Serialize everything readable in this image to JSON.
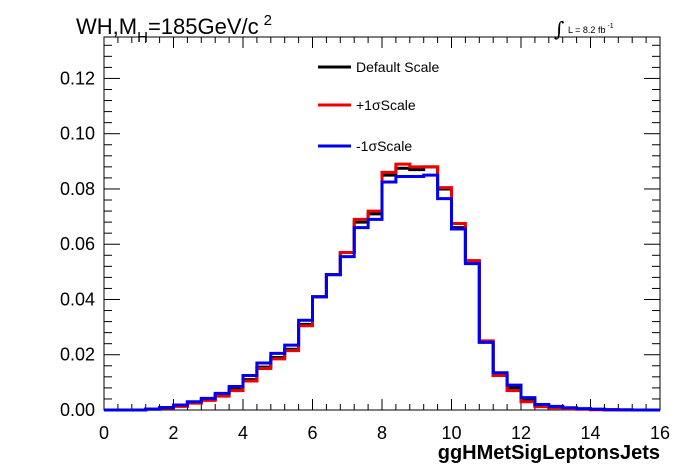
{
  "chart_data": {
    "type": "line",
    "title_main": "WH,M",
    "title_sub": "H",
    "title_rest": "=185GeV/c",
    "title_sup": "2",
    "lumi_text": "L = 8.2 fb",
    "lumi_sup": "-1",
    "xlabel": "ggHMetSigLeptonsJets",
    "ylabel": "",
    "xlim": [
      0,
      16
    ],
    "ylim": [
      0,
      0.135
    ],
    "x_ticks": [
      0,
      2,
      4,
      6,
      8,
      10,
      12,
      14,
      16
    ],
    "x_tick_labels": [
      "0",
      "2",
      "4",
      "6",
      "8",
      "10",
      "12",
      "14",
      "16"
    ],
    "y_ticks": [
      0,
      0.02,
      0.04,
      0.06,
      0.08,
      0.1,
      0.12
    ],
    "y_tick_labels": [
      "0.00",
      "0.02",
      "0.04",
      "0.06",
      "0.08",
      "0.10",
      "0.12"
    ],
    "bin_edges": [
      0,
      0.4,
      0.8,
      1.2,
      1.6,
      2.0,
      2.4,
      2.8,
      3.2,
      3.6,
      4.0,
      4.4,
      4.8,
      5.2,
      5.6,
      6.0,
      6.4,
      6.8,
      7.2,
      7.6,
      8.0,
      8.4,
      8.8,
      9.2,
      9.6,
      10.0,
      10.4,
      10.8,
      11.2,
      11.6,
      12.0,
      12.4,
      12.8,
      13.2,
      13.6,
      14.0,
      14.4,
      14.8,
      15.2,
      15.6,
      16.0
    ],
    "grid": false,
    "legend_position": "top-center",
    "series": [
      {
        "name": "Default Scale",
        "color": "#000000",
        "values": [
          0,
          0,
          0,
          0.0003,
          0.0008,
          0.0015,
          0.0028,
          0.0038,
          0.0055,
          0.0075,
          0.011,
          0.0155,
          0.019,
          0.022,
          0.031,
          0.041,
          0.049,
          0.057,
          0.068,
          0.071,
          0.085,
          0.0875,
          0.087,
          0.088,
          0.08,
          0.066,
          0.054,
          0.0245,
          0.0125,
          0.008,
          0.0035,
          0.0015,
          0.001,
          0.0006,
          0.0003,
          0.0002,
          0.0001,
          0,
          0,
          0
        ]
      },
      {
        "name": "+1σScale",
        "color": "#ee0000",
        "values": [
          0,
          0,
          0,
          0.0003,
          0.0007,
          0.0013,
          0.0025,
          0.0035,
          0.005,
          0.007,
          0.0105,
          0.015,
          0.0185,
          0.0215,
          0.0305,
          0.041,
          0.049,
          0.057,
          0.069,
          0.072,
          0.086,
          0.089,
          0.088,
          0.088,
          0.0805,
          0.0675,
          0.054,
          0.025,
          0.0125,
          0.007,
          0.003,
          0.0012,
          0.0008,
          0.0005,
          0.0003,
          0.0001,
          0.0001,
          0,
          0,
          0
        ]
      },
      {
        "name": "-1σScale",
        "color": "#0000ee",
        "values": [
          0,
          0,
          0,
          0.0003,
          0.0009,
          0.0018,
          0.003,
          0.0042,
          0.006,
          0.0085,
          0.0125,
          0.017,
          0.0205,
          0.0235,
          0.0325,
          0.041,
          0.049,
          0.0555,
          0.066,
          0.069,
          0.0825,
          0.0845,
          0.0845,
          0.085,
          0.0765,
          0.0655,
          0.053,
          0.0245,
          0.0135,
          0.009,
          0.0045,
          0.002,
          0.0013,
          0.0008,
          0.0005,
          0.0003,
          0.0001,
          0.0001,
          0,
          0
        ]
      }
    ]
  }
}
